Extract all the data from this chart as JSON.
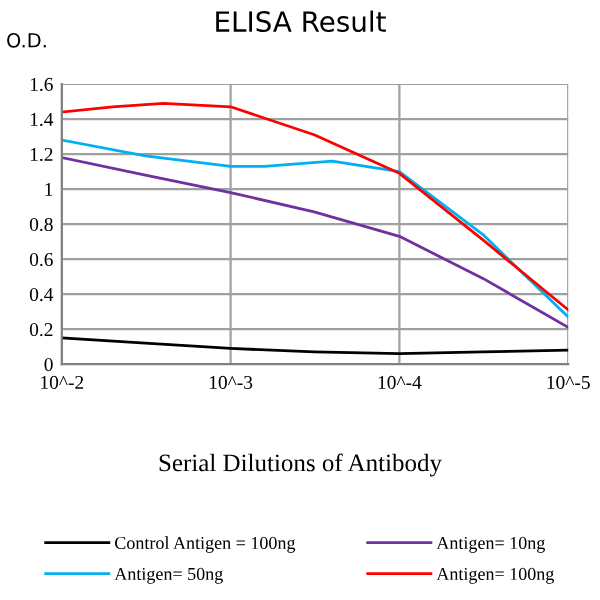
{
  "chart_data": {
    "type": "line",
    "title": "ELISA Result",
    "ylabel": "O.D.",
    "xlabel": "Serial Dilutions of Antibody",
    "series": [
      {
        "name": "Control Antigen = 100ng",
        "color": "#000000",
        "x": [
          0.01,
          0.0032,
          0.001,
          0.00032,
          0.0001,
          3.2e-05,
          1e-05
        ],
        "values": [
          0.15,
          0.12,
          0.09,
          0.07,
          0.06,
          0.07,
          0.08
        ]
      },
      {
        "name": "Antigen= 10ng",
        "color": "#7030a0",
        "x": [
          0.01,
          0.0032,
          0.001,
          0.00032,
          0.0001,
          3.2e-05,
          1e-05
        ],
        "values": [
          1.18,
          1.08,
          0.98,
          0.87,
          0.73,
          0.49,
          0.21
        ]
      },
      {
        "name": "Antigen= 50ng",
        "color": "#00b0f0",
        "x": [
          0.01,
          0.0032,
          0.001,
          0.00063,
          0.00025,
          0.0001,
          3.2e-05,
          1e-05
        ],
        "values": [
          1.28,
          1.19,
          1.13,
          1.13,
          1.16,
          1.1,
          0.74,
          0.27
        ]
      },
      {
        "name": "Antigen= 100ng",
        "color": "#ff0000",
        "x": [
          0.01,
          0.005,
          0.0025,
          0.001,
          0.00032,
          0.0001,
          3.2e-05,
          1e-05
        ],
        "values": [
          1.44,
          1.47,
          1.49,
          1.47,
          1.31,
          1.09,
          0.71,
          0.31
        ]
      }
    ],
    "log": "x",
    "xlim": [
      0.01,
      1e-05
    ],
    "xticks": [
      {
        "value": 0.01,
        "label": "10^-2"
      },
      {
        "value": 0.001,
        "label": "10^-3"
      },
      {
        "value": 0.0001,
        "label": "10^-4"
      },
      {
        "value": 1e-05,
        "label": "10^-5"
      }
    ],
    "ylim": [
      0,
      1.6
    ],
    "yticks": [
      0,
      0.2,
      0.4,
      0.6,
      0.8,
      1,
      1.2,
      1.4,
      1.6
    ],
    "grid": true,
    "legend": "bottom",
    "marker": "none",
    "line_style": "solid"
  }
}
